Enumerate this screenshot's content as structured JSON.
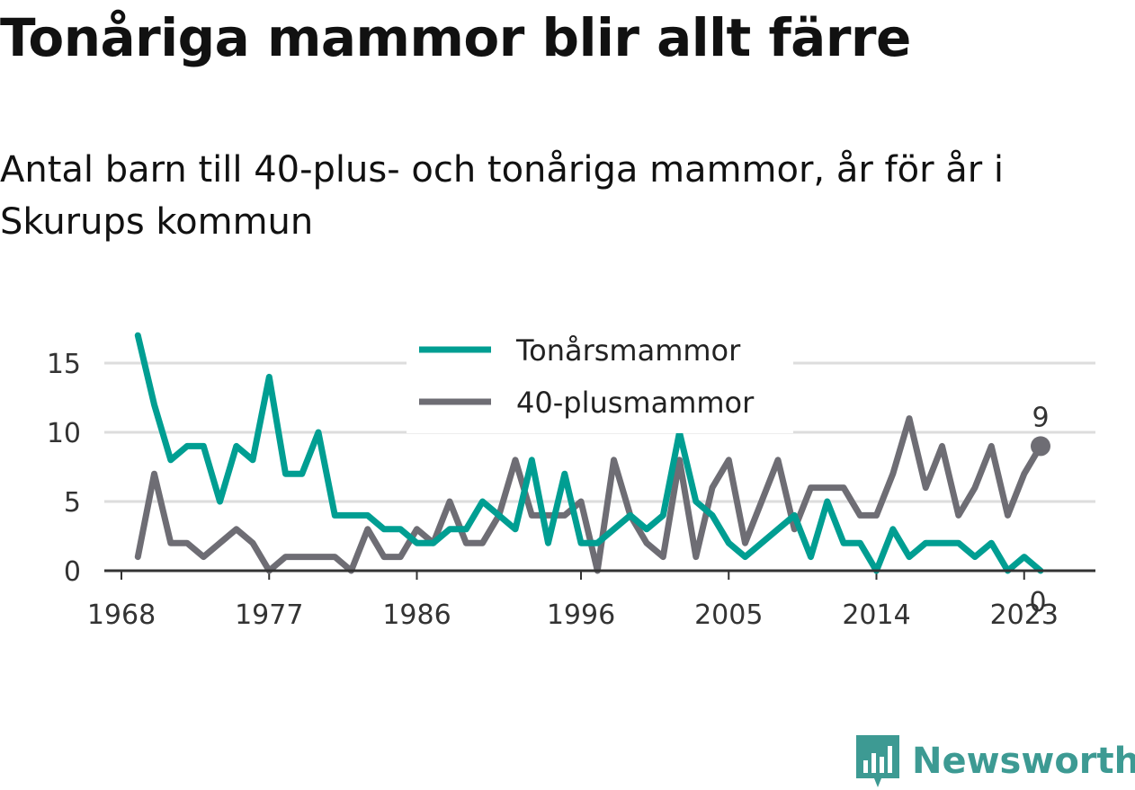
{
  "title": "Tonåriga mammor blir allt färre",
  "subtitle": "Antal barn till 40-plus- och tonåriga mammor, år för år i Skurups kommun",
  "logo_text": "Newsworthy",
  "colors": {
    "teen": "#009e92",
    "plus40": "#6e6d74",
    "grid": "#dddddd",
    "axis": "#333333"
  },
  "chart_data": {
    "type": "line",
    "x": [
      1969,
      1970,
      1971,
      1972,
      1973,
      1974,
      1975,
      1976,
      1977,
      1978,
      1979,
      1980,
      1981,
      1982,
      1983,
      1984,
      1985,
      1986,
      1987,
      1988,
      1989,
      1990,
      1991,
      1992,
      1993,
      1994,
      1995,
      1996,
      1997,
      1998,
      1999,
      2000,
      2001,
      2002,
      2003,
      2004,
      2005,
      2006,
      2007,
      2008,
      2009,
      2010,
      2011,
      2012,
      2013,
      2014,
      2015,
      2016,
      2017,
      2018,
      2019,
      2020,
      2021,
      2022,
      2023,
      2024
    ],
    "series": [
      {
        "name": "Tonårsmammor",
        "values": [
          17,
          12,
          8,
          9,
          9,
          5,
          9,
          8,
          14,
          7,
          7,
          10,
          4,
          4,
          4,
          3,
          3,
          2,
          2,
          3,
          3,
          5,
          4,
          3,
          8,
          2,
          7,
          2,
          2,
          3,
          4,
          3,
          4,
          10,
          5,
          4,
          2,
          1,
          2,
          3,
          4,
          1,
          5,
          2,
          2,
          0,
          3,
          1,
          2,
          2,
          2,
          1,
          2,
          0,
          1,
          0
        ]
      },
      {
        "name": "40-plusmammor",
        "values": [
          1,
          7,
          2,
          2,
          1,
          2,
          3,
          2,
          0,
          1,
          1,
          1,
          1,
          0,
          3,
          1,
          1,
          3,
          2,
          5,
          2,
          2,
          4,
          8,
          4,
          4,
          4,
          5,
          0,
          8,
          4,
          2,
          1,
          8,
          1,
          6,
          8,
          2,
          5,
          8,
          3,
          6,
          6,
          6,
          4,
          4,
          7,
          11,
          6,
          9,
          4,
          6,
          9,
          4,
          7,
          9
        ]
      }
    ],
    "x_ticks": [
      "1968",
      "1977",
      "1986",
      "1996",
      "2005",
      "2014",
      "2023"
    ],
    "y_ticks": [
      "0",
      "5",
      "10",
      "15"
    ],
    "ylim": [
      0,
      17
    ],
    "end_labels": {
      "plus40": "9",
      "teen": "0"
    },
    "legend_position": "top-center",
    "grid": true
  }
}
